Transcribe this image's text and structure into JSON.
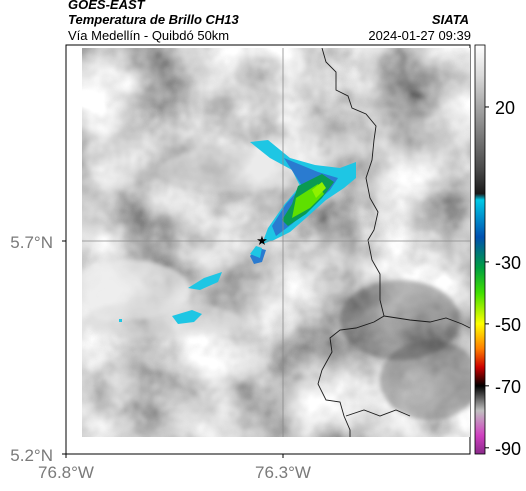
{
  "header": {
    "satellite": "GOES-EAST",
    "product": "Temperatura de Brillo CH13",
    "region": "Vía Medellín - Quibdó 50km",
    "org": "SIATA",
    "datetime": "2024-01-27 09:39"
  },
  "map": {
    "x_ticks": [
      {
        "value": -76.8,
        "label": "76.8°W"
      },
      {
        "value": -76.3,
        "label": "76.3°W"
      }
    ],
    "y_ticks": [
      {
        "value": 5.7,
        "label": "5.7°N"
      },
      {
        "value": 5.2,
        "label": "5.2°N"
      }
    ],
    "lon_range": [
      -76.8,
      -75.96
    ],
    "lat_range": [
      5.2,
      6.2
    ],
    "marker": {
      "lon": -76.34,
      "lat": 5.7,
      "symbol": "★"
    }
  },
  "colorbar": {
    "unit_hint": "°C",
    "ticks": [
      "20",
      "-30",
      "-50",
      "-70",
      "-90"
    ],
    "stops": [
      {
        "value": 40,
        "color": "#ffffff"
      },
      {
        "value": 30,
        "color": "#d9d9d9"
      },
      {
        "value": 20,
        "color": "#a6a6a6"
      },
      {
        "value": 10,
        "color": "#777777"
      },
      {
        "value": 0,
        "color": "#4a4a4a"
      },
      {
        "value": -8,
        "color": "#1a1a1a"
      },
      {
        "value": -10,
        "color": "#00c9e6"
      },
      {
        "value": -22,
        "color": "#0050b0"
      },
      {
        "value": -32,
        "color": "#00a040"
      },
      {
        "value": -40,
        "color": "#40e000"
      },
      {
        "value": -50,
        "color": "#ffff00"
      },
      {
        "value": -58,
        "color": "#ff7f00"
      },
      {
        "value": -64,
        "color": "#cc0000"
      },
      {
        "value": -70,
        "color": "#000000"
      },
      {
        "value": -78,
        "color": "#c0c0c0"
      },
      {
        "value": -86,
        "color": "#d040c0"
      },
      {
        "value": -92,
        "color": "#8a2a8a"
      }
    ]
  }
}
